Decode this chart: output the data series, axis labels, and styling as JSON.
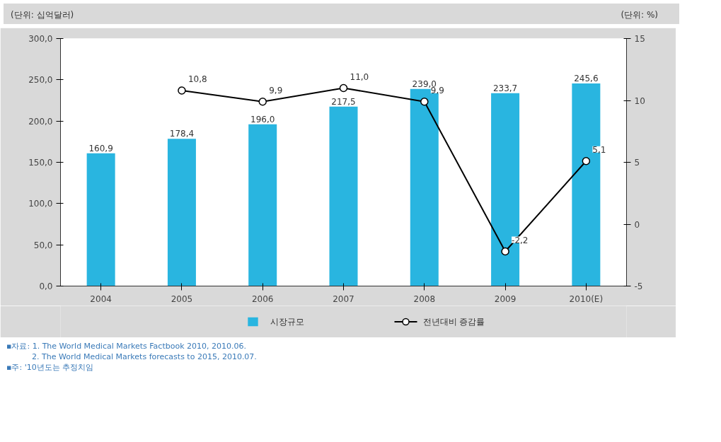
{
  "chart_data": {
    "type": "bar",
    "categories": [
      "2004",
      "2005",
      "2006",
      "2007",
      "2008",
      "2009",
      "2010(E)"
    ],
    "series": [
      {
        "name": "시장규모",
        "color": "#29b5e0",
        "values": [
          160.9,
          178.4,
          196.0,
          217.5,
          239.0,
          233.7,
          245.6
        ],
        "value_labels": [
          "160,9",
          "178,4",
          "196,0",
          "217,5",
          "239,0",
          "233,7",
          "245,6"
        ]
      },
      {
        "name": "전년대비 증감률",
        "type": "line",
        "axis": "y2",
        "color": "#000000",
        "marker": "circle",
        "values": [
          null,
          10.8,
          9.9,
          11.0,
          9.9,
          -2.2,
          5.1
        ],
        "value_labels": [
          null,
          "10,8",
          "9,9",
          "11,0",
          "9,9",
          "-2,2",
          "5,1"
        ]
      }
    ],
    "ylim": [
      0,
      300
    ],
    "yticks": [
      {
        "value": 0,
        "label": "0,0"
      },
      {
        "value": 50,
        "label": "50,0"
      },
      {
        "value": 100,
        "label": "100,0"
      },
      {
        "value": 150,
        "label": "150,0"
      },
      {
        "value": 200,
        "label": "200,0"
      },
      {
        "value": 250,
        "label": "250,0"
      },
      {
        "value": 300,
        "label": "300,0"
      }
    ],
    "y2lim": [
      -5,
      15
    ],
    "y2ticks": [
      -5,
      0,
      5,
      10,
      15
    ],
    "ylabel": "(단위: 십억달러)",
    "y2label": "(단위: %)",
    "grid": false,
    "legend": "bottom",
    "annotations": [
      "▪자료: 1. The World Medical Markets Factbook 2010, 2010.06.",
      "2. The World Medical Markets forecasts to 2015, 2010.07.",
      "▪주: '10년도는 추정치임"
    ]
  }
}
